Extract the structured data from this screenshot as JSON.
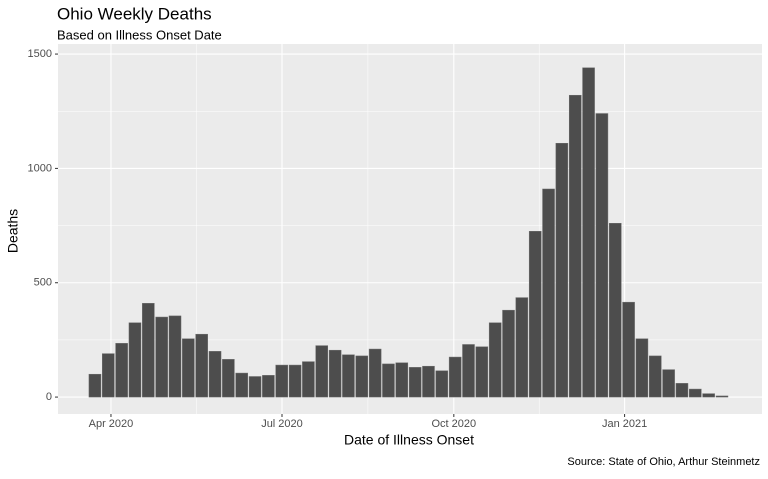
{
  "chart_data": {
    "type": "bar",
    "title": "Ohio Weekly Deaths",
    "subtitle": "Based on Illness Onset Date",
    "x_label": "Date of Illness Onset",
    "y_label": "Deaths",
    "caption": "Source: State of Ohio, Arthur Steinmetz",
    "categories": [
      null,
      null,
      null,
      null,
      null,
      null,
      null,
      null,
      null,
      null,
      null,
      null,
      null,
      null,
      null,
      null,
      null,
      null,
      null,
      null,
      null,
      null,
      null,
      null,
      null,
      null,
      null,
      null,
      null,
      null,
      null,
      null,
      null,
      null,
      null,
      null,
      null,
      null,
      null,
      null,
      null,
      null,
      null,
      null,
      null,
      null,
      null,
      null
    ],
    "values": [
      100,
      190,
      235,
      325,
      410,
      350,
      355,
      255,
      275,
      200,
      165,
      105,
      90,
      95,
      140,
      140,
      155,
      225,
      205,
      185,
      180,
      210,
      145,
      150,
      130,
      135,
      115,
      175,
      230,
      220,
      325,
      380,
      435,
      725,
      910,
      1110,
      1320,
      1440,
      1240,
      760,
      415,
      255,
      180,
      120,
      60,
      35,
      15,
      5
    ],
    "color": "#4d4d4d",
    "xlim": [
      -2.77,
      50.0
    ],
    "xticks": [
      {
        "value": 1.2,
        "label": "Apr 2020"
      },
      {
        "value": 14.02,
        "label": "Jul 2020"
      },
      {
        "value": 26.9,
        "label": "Oct 2020"
      },
      {
        "value": 39.7,
        "label": "Jan 2021"
      }
    ],
    "ylim": [
      -74,
      1544
    ],
    "yticks": [
      0,
      500,
      1000,
      1500
    ],
    "grid": true
  }
}
